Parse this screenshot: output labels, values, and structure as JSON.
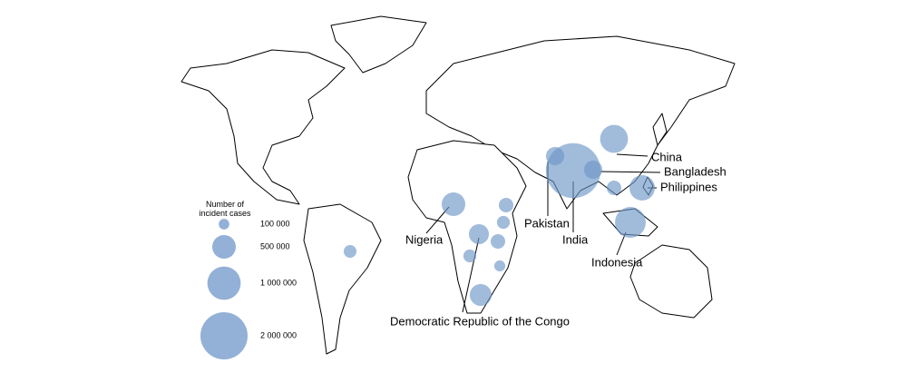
{
  "map": {
    "legend": {
      "title": "Number of incident cases",
      "entries": [
        {
          "value": 100000,
          "label": "100 000"
        },
        {
          "value": 500000,
          "label": "500 000"
        },
        {
          "value": 1000000,
          "label": "1 000 000"
        },
        {
          "value": 2000000,
          "label": "2 000 000"
        }
      ]
    },
    "bubble_color": "#6f96c8",
    "bubbles": [
      {
        "label": "China",
        "value": 700000
      },
      {
        "label": "Bangladesh",
        "value": 300000
      },
      {
        "label": "Philippines",
        "value": 580000
      },
      {
        "label": "Pakistan",
        "value": 300000
      },
      {
        "label": "India",
        "value": 2700000
      },
      {
        "label": "Indonesia",
        "value": 850000
      },
      {
        "label": "Nigeria",
        "value": 500000
      },
      {
        "label": "Democratic Republic of the Congo",
        "value": 360000
      },
      {
        "label": null,
        "value": 190000
      },
      {
        "label": null,
        "value": 150000
      },
      {
        "label": null,
        "value": 190000
      },
      {
        "label": null,
        "value": 150000
      },
      {
        "label": null,
        "value": 110000
      },
      {
        "label": null,
        "value": 430000
      },
      {
        "label": null,
        "value": 145000
      },
      {
        "label": null,
        "value": 190000
      }
    ]
  }
}
